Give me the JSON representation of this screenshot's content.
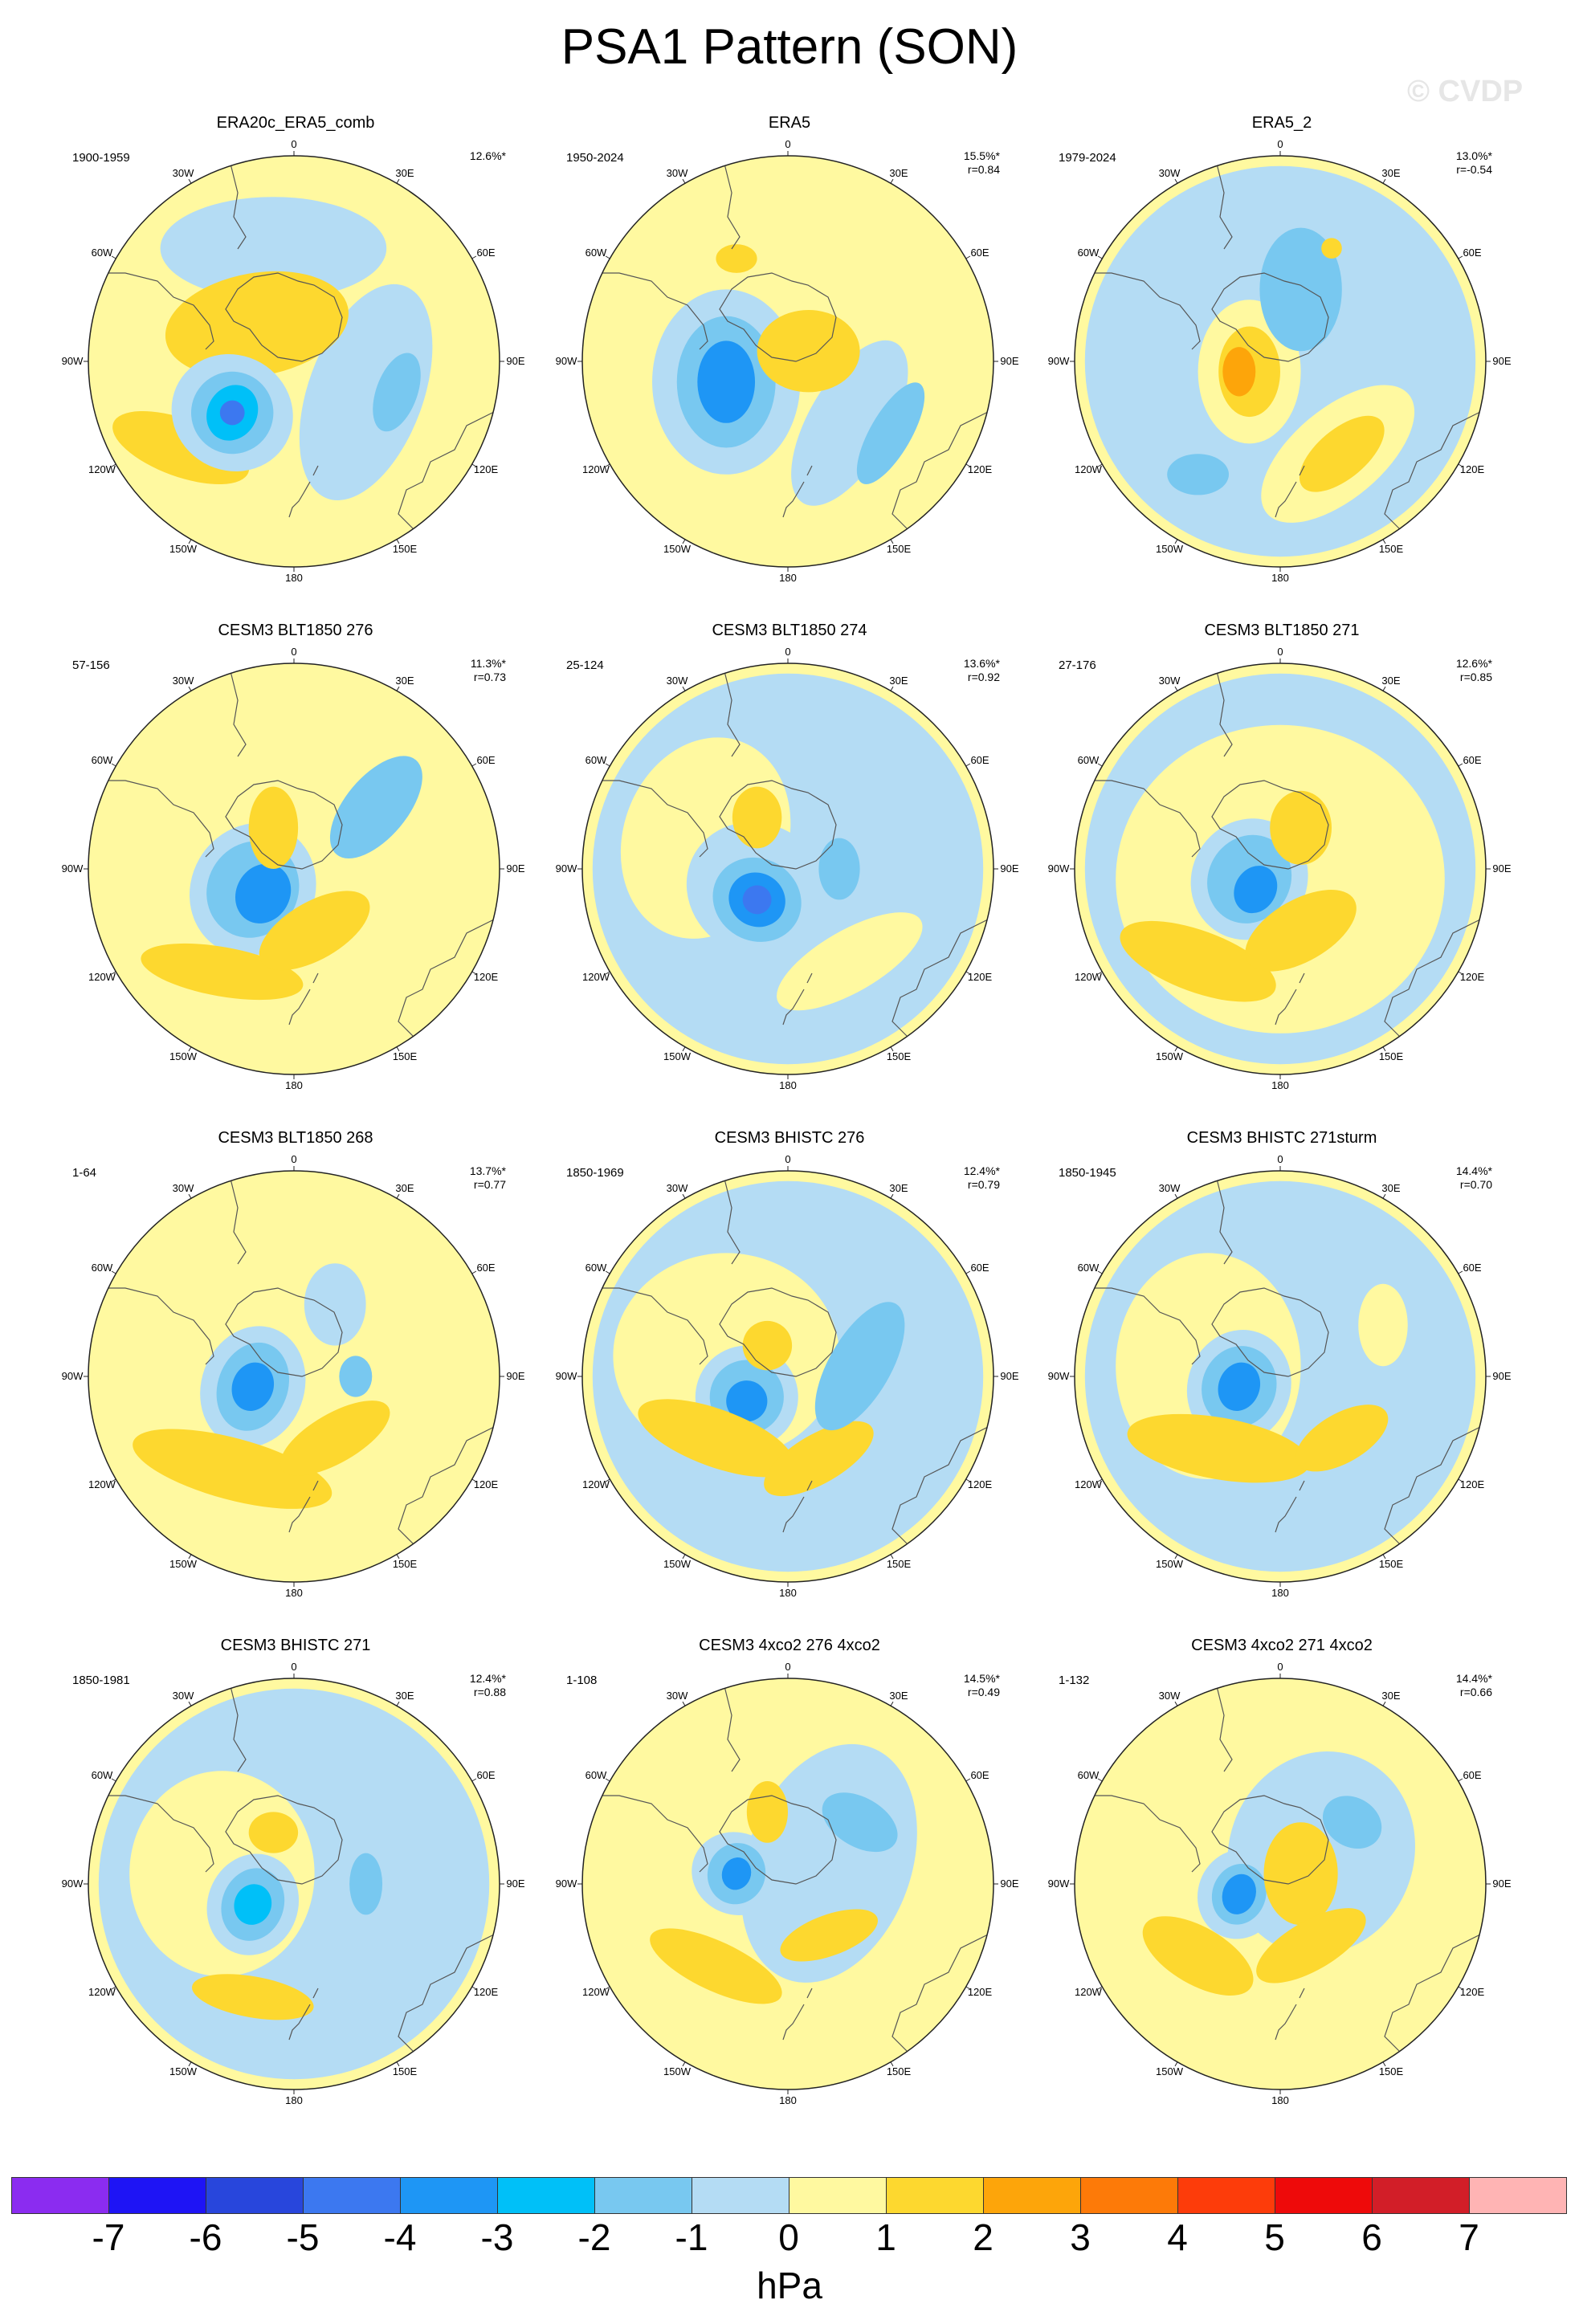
{
  "title": "PSA1 Pattern (SON)",
  "watermark": "© CVDP",
  "lon_labels": [
    "0",
    "30E",
    "60E",
    "90E",
    "120E",
    "150E",
    "180",
    "150W",
    "120W",
    "90W",
    "60W",
    "30W"
  ],
  "colors": {
    "land_outline": "#555555",
    "map_border": "#222222"
  },
  "chart_data": {
    "type": "polar contour map",
    "panels": [
      {
        "title": "ERA20c_ERA5_comb",
        "period": "1900-1959",
        "pct": "12.6%*",
        "r": ""
      },
      {
        "title": "ERA5",
        "period": "1950-2024",
        "pct": "15.5%*",
        "r": "r=0.84"
      },
      {
        "title": "ERA5_2",
        "period": "1979-2024",
        "pct": "13.0%*",
        "r": "r=-0.54"
      },
      {
        "title": "CESM3 BLT1850 276",
        "period": "57-156",
        "pct": "11.3%*",
        "r": "r=0.73"
      },
      {
        "title": "CESM3 BLT1850 274",
        "period": "25-124",
        "pct": "13.6%*",
        "r": "r=0.92"
      },
      {
        "title": "CESM3 BLT1850 271",
        "period": "27-176",
        "pct": "12.6%*",
        "r": "r=0.85"
      },
      {
        "title": "CESM3 BLT1850 268",
        "period": "1-64",
        "pct": "13.7%*",
        "r": "r=0.77"
      },
      {
        "title": "CESM3 BHISTC 276",
        "period": "1850-1969",
        "pct": "12.4%*",
        "r": "r=0.79"
      },
      {
        "title": "CESM3 BHISTC 271sturm",
        "period": "1850-1945",
        "pct": "14.4%*",
        "r": "r=0.70"
      },
      {
        "title": "CESM3 BHISTC 271",
        "period": "1850-1981",
        "pct": "12.4%*",
        "r": "r=0.88"
      },
      {
        "title": "CESM3 4xco2 276 4xco2",
        "period": "1-108",
        "pct": "14.5%*",
        "r": "r=0.49"
      },
      {
        "title": "CESM3 4xco2 271 4xco2",
        "period": "1-132",
        "pct": "14.4%*",
        "r": "r=0.66"
      }
    ],
    "colorbar": {
      "label": "hPa",
      "ticks": [
        "-7",
        "-6",
        "-5",
        "-4",
        "-3",
        "-2",
        "-1",
        "0",
        "1",
        "2",
        "3",
        "4",
        "5",
        "6",
        "7"
      ],
      "colors": [
        "#8b2cf0",
        "#1e14f5",
        "#2846dc",
        "#3c78f0",
        "#1e96f5",
        "#00c0f8",
        "#78c8f0",
        "#b4dcf4",
        "#fff9a0",
        "#fdd82f",
        "#fda50a",
        "#fd7a08",
        "#fd3c0a",
        "#ee0a0a",
        "#d21e28",
        "#ffb4b4"
      ]
    }
  }
}
